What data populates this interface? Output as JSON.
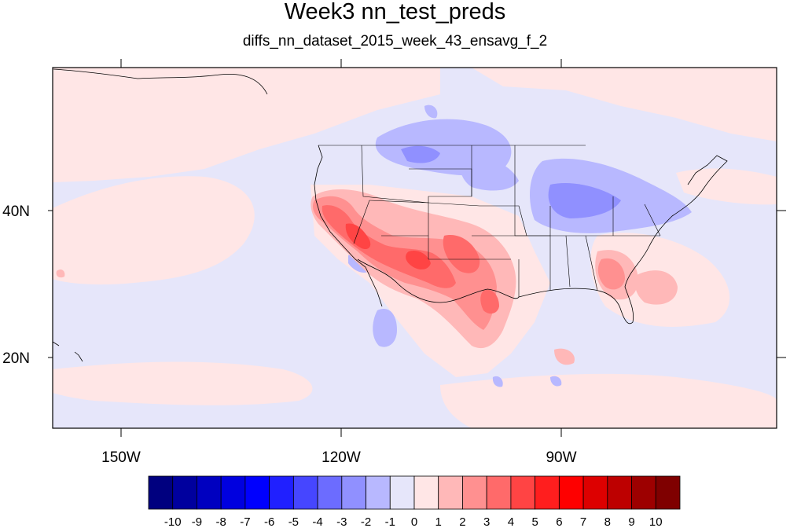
{
  "title": "Week3 nn_test_preds",
  "subtitle": "diffs_nn_dataset_2015_week_43_ensavg_f_2",
  "map": {
    "projection": "cylindrical-equidistant",
    "lon_range": [
      -169,
      -71
    ],
    "lat_range": [
      11,
      60
    ],
    "x_ticks": [
      {
        "lon": -150,
        "label": "150W"
      },
      {
        "lon": -120,
        "label": "120W"
      },
      {
        "lon": -90,
        "label": "90W"
      }
    ],
    "y_ticks": [
      {
        "lat": 40,
        "label": "40N"
      },
      {
        "lat": 20,
        "label": "20N"
      }
    ],
    "background_value": "-1 to 0 (light lavender) over ocean; 0 to 1 (light pink) in patches",
    "features": [
      "coastlines",
      "US state boundaries"
    ]
  },
  "colorbar": {
    "labels": [
      "-10",
      "-9",
      "-8",
      "-7",
      "-6",
      "-5",
      "-4",
      "-3",
      "-2",
      "-1",
      "0",
      "1",
      "2",
      "3",
      "4",
      "5",
      "6",
      "7",
      "8",
      "9",
      "10"
    ],
    "colors": [
      "#00007f",
      "#00009e",
      "#0000c0",
      "#0000df",
      "#0000fe",
      "#2020ff",
      "#4646ff",
      "#6c6cff",
      "#9090ff",
      "#b8b8ff",
      "#e6e6fa",
      "#ffe6e6",
      "#ffb8b8",
      "#ff9090",
      "#ff6a6a",
      "#ff4444",
      "#ff1e1e",
      "#fe0000",
      "#dd0000",
      "#bd0000",
      "#9d0000",
      "#7f0000"
    ]
  }
}
